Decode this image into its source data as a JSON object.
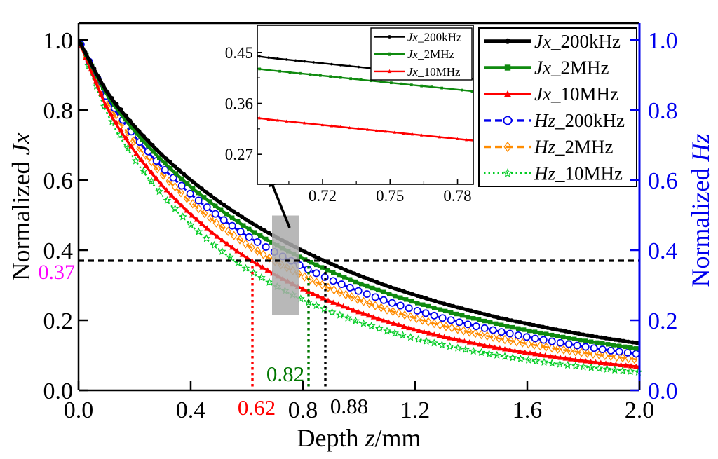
{
  "axes": {
    "x": {
      "prefix": "Depth ",
      "italic": "z",
      "suffix": "/mm",
      "tick_values": [
        0,
        0.4,
        0.8,
        1.2,
        1.6,
        2.0
      ],
      "tick_labels": [
        "0.0",
        "0.4",
        "0.8",
        "1.2",
        "1.6",
        "2.0"
      ],
      "color": "#000000"
    },
    "y_left": {
      "prefix": "Normalized ",
      "italic": "Jx",
      "suffix": "",
      "tick_values": [
        1.0,
        0.8,
        0.6,
        0.4,
        0.2,
        0.0
      ],
      "tick_labels": [
        "1.0",
        "0.8",
        "0.6",
        "0.4",
        "0.2",
        "0.0"
      ],
      "color": "#000000"
    },
    "y_right": {
      "prefix": "Normalized ",
      "italic": "Hz",
      "suffix": "",
      "tick_values": [
        1.0,
        0.8,
        0.6,
        0.4,
        0.2,
        0.0
      ],
      "tick_labels": [
        "1.0",
        "0.8",
        "0.6",
        "0.4",
        "0.2",
        "0.0"
      ],
      "color": "#0000ee"
    }
  },
  "chart_data": {
    "type": "line",
    "title": "",
    "xlabel": "Depth z/mm",
    "ylabel_left": "Normalized Jx",
    "ylabel_right": "Normalized Hz",
    "xlim": [
      0,
      2.0
    ],
    "ylim": [
      0,
      1.048
    ],
    "grid": false,
    "legend_position": "top-right",
    "x": [
      0,
      0.1,
      0.2,
      0.3,
      0.4,
      0.5,
      0.6,
      0.7,
      0.8,
      0.9,
      1.0,
      1.1,
      1.2,
      1.3,
      1.4,
      1.5,
      1.6,
      1.7,
      1.8,
      1.9,
      2.0
    ],
    "series": [
      {
        "name": "Jx_200kHz",
        "name_italic": "Jx",
        "name_suffix": "_200kHz",
        "axis": "left",
        "color": "#000000",
        "marker": "circle-filled",
        "line": "solid",
        "values": [
          1.0,
          0.854,
          0.753,
          0.67,
          0.6,
          0.539,
          0.486,
          0.439,
          0.398,
          0.361,
          0.328,
          0.298,
          0.272,
          0.248,
          0.227,
          0.207,
          0.19,
          0.174,
          0.159,
          0.146,
          0.134
        ]
      },
      {
        "name": "Jx_2MHz",
        "name_italic": "Jx",
        "name_suffix": "_2MHz",
        "axis": "left",
        "color": "#0f8a0f",
        "marker": "square-filled",
        "line": "solid",
        "values": [
          1.0,
          0.846,
          0.74,
          0.654,
          0.581,
          0.519,
          0.464,
          0.417,
          0.376,
          0.339,
          0.306,
          0.277,
          0.251,
          0.228,
          0.207,
          0.188,
          0.171,
          0.156,
          0.142,
          0.13,
          0.118
        ]
      },
      {
        "name": "Jx_10MHz",
        "name_italic": "Jx",
        "name_suffix": "_10MHz",
        "axis": "left",
        "color": "#ff0000",
        "marker": "triangle-filled",
        "line": "solid",
        "values": [
          1.0,
          0.809,
          0.682,
          0.583,
          0.502,
          0.435,
          0.378,
          0.33,
          0.289,
          0.253,
          0.223,
          0.196,
          0.173,
          0.153,
          0.136,
          0.12,
          0.107,
          0.095,
          0.084,
          0.075,
          0.067
        ]
      },
      {
        "name": "Hz_200kHz",
        "name_italic": "Hz",
        "name_suffix": "_200kHz",
        "axis": "right",
        "color": "#0000ee",
        "marker": "circle-open",
        "line": "dashed",
        "values": [
          1.0,
          0.837,
          0.725,
          0.635,
          0.56,
          0.496,
          0.441,
          0.394,
          0.352,
          0.315,
          0.283,
          0.254,
          0.229,
          0.206,
          0.186,
          0.168,
          0.152,
          0.138,
          0.125,
          0.113,
          0.103
        ]
      },
      {
        "name": "Hz_2MHz",
        "name_italic": "Hz",
        "name_suffix": "_2MHz",
        "axis": "right",
        "color": "#ff8c00",
        "marker": "diamond-open",
        "line": "dashed",
        "values": [
          1.0,
          0.826,
          0.708,
          0.615,
          0.537,
          0.472,
          0.416,
          0.368,
          0.326,
          0.29,
          0.258,
          0.23,
          0.206,
          0.184,
          0.165,
          0.148,
          0.133,
          0.119,
          0.107,
          0.097,
          0.087
        ]
      },
      {
        "name": "Hz_10MHz",
        "name_italic": "Hz",
        "name_suffix": "_10MHz",
        "axis": "right",
        "color": "#00cc22",
        "marker": "star-open",
        "line": "dotted",
        "values": [
          1.0,
          0.794,
          0.659,
          0.555,
          0.472,
          0.403,
          0.346,
          0.299,
          0.258,
          0.224,
          0.195,
          0.169,
          0.148,
          0.129,
          0.113,
          0.099,
          0.087,
          0.076,
          0.067,
          0.059,
          0.052
        ]
      }
    ],
    "annotations": {
      "hline": {
        "y": 0.37,
        "label": "0.37",
        "label_color": "#ff00ff",
        "line_color": "#000000"
      },
      "vlines": [
        {
          "x": 0.62,
          "label": "0.62",
          "color": "#ff0000"
        },
        {
          "x": 0.82,
          "label": "0.82",
          "color": "#007700"
        },
        {
          "x": 0.88,
          "label": "0.88",
          "color": "#000000"
        }
      ]
    },
    "inset": {
      "xlim": [
        0.691,
        0.787
      ],
      "ylim": [
        0.217,
        0.498
      ],
      "xtick_values": [
        0.72,
        0.75,
        0.78
      ],
      "xtick_labels": [
        "0.72",
        "0.75",
        "0.78"
      ],
      "ytick_values": [
        0.45,
        0.36,
        0.27
      ],
      "ytick_labels": [
        "0.45",
        "0.36",
        "0.27"
      ],
      "series": [
        "Jx_200kHz",
        "Jx_2MHz",
        "Jx_10MHz"
      ],
      "zoom_rect": {
        "x": [
          0.69,
          0.7875
        ],
        "y": [
          0.214,
          0.499
        ],
        "fill": "#ababab"
      }
    }
  }
}
